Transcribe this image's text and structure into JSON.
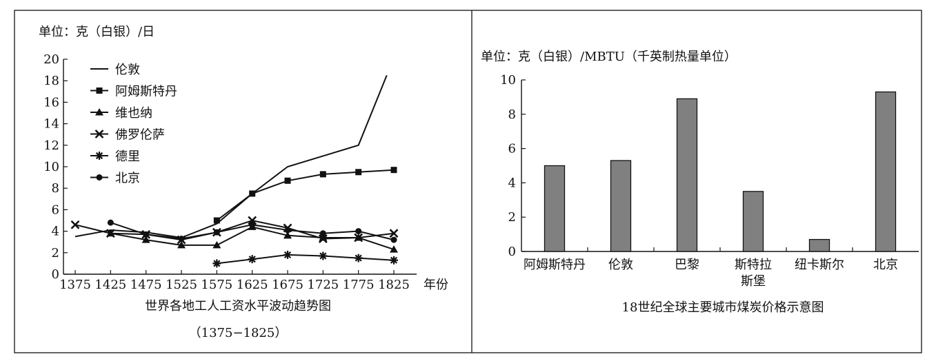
{
  "chart_data": [
    {
      "type": "line",
      "title": "世界各地工人工资水平波动趋势图",
      "subtitle": "（1375−1825）",
      "unit_label": "单位：克（白银）/日",
      "xlabel": "年份",
      "ylabel": "",
      "xlim": [
        1375,
        1825
      ],
      "ylim": [
        0,
        20
      ],
      "x_ticks": [
        "1375",
        "1425",
        "1475",
        "1525",
        "1575",
        "1625",
        "1675",
        "1725",
        "1775",
        "1825"
      ],
      "y_ticks": [
        "0",
        "2",
        "4",
        "6",
        "8",
        "10",
        "12",
        "14",
        "16",
        "18",
        "20"
      ],
      "grid": false,
      "legend_position": "top-left",
      "series": [
        {
          "name": "伦敦",
          "marker": "none",
          "points": [
            [
              1375,
              3.5
            ],
            [
              1425,
              4.1
            ],
            [
              1475,
              3.9
            ],
            [
              1525,
              3.4
            ],
            [
              1575,
              4.7
            ],
            [
              1625,
              7.5
            ],
            [
              1675,
              10.0
            ],
            [
              1725,
              11.0
            ],
            [
              1775,
              12.0
            ],
            [
              1815,
              18.5
            ]
          ]
        },
        {
          "name": "阿姆斯特丹",
          "marker": "square",
          "points": [
            [
              1575,
              5.0
            ],
            [
              1625,
              7.5
            ],
            [
              1675,
              8.7
            ],
            [
              1725,
              9.3
            ],
            [
              1775,
              9.5
            ],
            [
              1825,
              9.7
            ]
          ]
        },
        {
          "name": "维也纳",
          "marker": "triangle",
          "points": [
            [
              1425,
              3.8
            ],
            [
              1475,
              3.2
            ],
            [
              1525,
              2.7
            ],
            [
              1575,
              2.7
            ],
            [
              1625,
              4.4
            ],
            [
              1675,
              3.6
            ],
            [
              1725,
              3.4
            ],
            [
              1775,
              3.4
            ],
            [
              1825,
              2.3
            ]
          ]
        },
        {
          "name": "佛罗伦萨",
          "marker": "x",
          "points": [
            [
              1375,
              4.6
            ],
            [
              1425,
              3.8
            ],
            [
              1475,
              3.7
            ],
            [
              1525,
              3.2
            ],
            [
              1575,
              3.9
            ],
            [
              1625,
              5.0
            ],
            [
              1675,
              4.3
            ],
            [
              1725,
              3.3
            ],
            [
              1775,
              3.4
            ],
            [
              1825,
              3.8
            ]
          ]
        },
        {
          "name": "德里",
          "marker": "asterisk",
          "points": [
            [
              1575,
              1.0
            ],
            [
              1625,
              1.4
            ],
            [
              1675,
              1.8
            ],
            [
              1725,
              1.7
            ],
            [
              1775,
              1.5
            ],
            [
              1825,
              1.3
            ]
          ]
        },
        {
          "name": "北京",
          "marker": "circle",
          "points": [
            [
              1425,
              4.8
            ],
            [
              1475,
              3.7
            ],
            [
              1525,
              3.3
            ],
            [
              1575,
              3.9
            ],
            [
              1625,
              4.6
            ],
            [
              1675,
              4.1
            ],
            [
              1725,
              3.8
            ],
            [
              1775,
              4.0
            ],
            [
              1825,
              3.2
            ]
          ]
        }
      ]
    },
    {
      "type": "bar",
      "title": "18世纪全球主要城市煤炭价格示意图",
      "unit_label": "单位：克（白银）/MBTU（千英制热量单位）",
      "xlabel": "",
      "ylabel": "",
      "ylim": [
        0,
        10
      ],
      "y_ticks": [
        "0",
        "2",
        "4",
        "6",
        "8",
        "10"
      ],
      "grid": false,
      "bar_color": "#808080",
      "categories": [
        "阿姆斯特丹",
        "伦敦",
        "巴黎",
        "斯特拉斯堡",
        "纽卡斯尔",
        "北京"
      ],
      "category_label_lines": [
        [
          "阿姆斯特丹"
        ],
        [
          "伦敦"
        ],
        [
          "巴黎"
        ],
        [
          "斯特拉",
          "斯堡"
        ],
        [
          "纽卡斯尔"
        ],
        [
          "北京"
        ]
      ],
      "values": [
        5.0,
        5.3,
        8.9,
        3.5,
        0.7,
        9.3
      ]
    }
  ]
}
